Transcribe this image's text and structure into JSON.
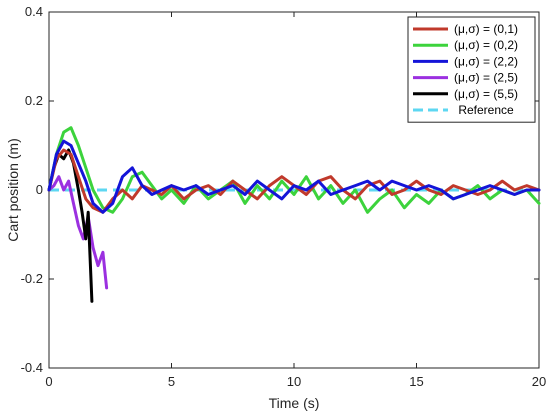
{
  "chart_data": {
    "type": "line",
    "title": "",
    "xlabel": "Time (s)",
    "ylabel": "Cart position (m)",
    "xlim": [
      0,
      20
    ],
    "ylim": [
      -0.4,
      0.4
    ],
    "x_ticks": [
      0,
      5,
      10,
      15,
      20
    ],
    "y_ticks": [
      -0.4,
      -0.2,
      0,
      0.2,
      0.4
    ],
    "grid": false,
    "legend_position": "top-right",
    "series": [
      {
        "name": "(μ,σ) = (0,1)",
        "color": "#c0392b",
        "x": [
          0,
          0.3,
          0.6,
          0.9,
          1.2,
          1.5,
          1.8,
          2.2,
          2.6,
          3.0,
          3.4,
          3.8,
          4.2,
          4.6,
          5.0,
          5.5,
          6.0,
          6.5,
          7.0,
          7.5,
          8.0,
          8.5,
          9.0,
          9.5,
          10.0,
          10.5,
          11.0,
          11.5,
          12.0,
          12.5,
          13.0,
          13.5,
          14.0,
          14.5,
          15.0,
          15.5,
          16.0,
          16.5,
          17.0,
          17.5,
          18.0,
          18.5,
          19.0,
          19.5,
          20.0
        ],
        "y": [
          0,
          0.07,
          0.09,
          0.08,
          0.03,
          -0.02,
          -0.04,
          -0.05,
          -0.02,
          0.0,
          -0.02,
          0.01,
          0.0,
          -0.01,
          0.01,
          -0.02,
          0.0,
          0.01,
          -0.01,
          0.02,
          0.0,
          -0.02,
          0.01,
          0.03,
          0.01,
          -0.01,
          0.02,
          0.03,
          0.0,
          -0.02,
          0.01,
          0.02,
          -0.01,
          0.0,
          0.02,
          0.0,
          -0.01,
          0.01,
          0.0,
          -0.01,
          0.0,
          0.02,
          0.0,
          0.01,
          0.0
        ]
      },
      {
        "name": "(μ,σ) = (0,2)",
        "color": "#3cd33c",
        "x": [
          0,
          0.3,
          0.6,
          0.9,
          1.2,
          1.5,
          1.8,
          2.2,
          2.6,
          3.0,
          3.4,
          3.8,
          4.2,
          4.6,
          5.0,
          5.5,
          6.0,
          6.5,
          7.0,
          7.5,
          8.0,
          8.5,
          9.0,
          9.5,
          10.0,
          10.5,
          11.0,
          11.5,
          12.0,
          12.5,
          13.0,
          13.5,
          14.0,
          14.5,
          15.0,
          15.5,
          16.0,
          16.5,
          17.0,
          17.5,
          18.0,
          18.5,
          19.0,
          19.5,
          20.0
        ],
        "y": [
          0,
          0.08,
          0.13,
          0.14,
          0.1,
          0.05,
          0.0,
          -0.04,
          -0.05,
          -0.02,
          0.03,
          0.04,
          0.01,
          -0.02,
          0.0,
          -0.03,
          0.01,
          -0.02,
          0.0,
          0.02,
          -0.03,
          0.01,
          -0.02,
          0.02,
          -0.01,
          0.03,
          -0.02,
          0.01,
          -0.03,
          0.0,
          -0.05,
          -0.02,
          0.0,
          -0.04,
          -0.01,
          -0.03,
          0.0,
          -0.02,
          -0.01,
          0.01,
          -0.02,
          0.0,
          -0.01,
          0.0,
          -0.03
        ]
      },
      {
        "name": "(μ,σ) = (2,2)",
        "color": "#1414d8",
        "x": [
          0,
          0.3,
          0.6,
          0.9,
          1.2,
          1.5,
          1.8,
          2.2,
          2.6,
          3.0,
          3.4,
          3.8,
          4.2,
          4.6,
          5.0,
          5.5,
          6.0,
          6.5,
          7.0,
          7.5,
          8.0,
          8.5,
          9.0,
          9.5,
          10.0,
          10.5,
          11.0,
          11.5,
          12.0,
          12.5,
          13.0,
          13.5,
          14.0,
          14.5,
          15.0,
          15.5,
          16.0,
          16.5,
          17.0,
          17.5,
          18.0,
          18.5,
          19.0,
          19.5,
          20.0
        ],
        "y": [
          0,
          0.08,
          0.11,
          0.1,
          0.06,
          0.02,
          -0.03,
          -0.05,
          -0.03,
          0.03,
          0.05,
          0.01,
          -0.01,
          0.0,
          0.01,
          0.0,
          0.01,
          -0.01,
          0.0,
          0.01,
          -0.01,
          0.02,
          0.0,
          -0.02,
          0.01,
          0.0,
          0.02,
          -0.01,
          0.0,
          0.01,
          0.02,
          0.0,
          0.02,
          0.01,
          0.0,
          0.01,
          0.0,
          -0.02,
          -0.01,
          0.0,
          0.01,
          0.0,
          -0.01,
          0.0,
          0.0
        ]
      },
      {
        "name": "(μ,σ) = (2,5)",
        "color": "#9b30e0",
        "x": [
          0,
          0.2,
          0.4,
          0.6,
          0.8,
          1.0,
          1.2,
          1.4,
          1.6,
          1.8,
          2.0,
          2.2,
          2.35
        ],
        "y": [
          0,
          0.01,
          0.03,
          0.0,
          0.02,
          -0.03,
          -0.08,
          -0.11,
          -0.06,
          -0.13,
          -0.17,
          -0.14,
          -0.22
        ]
      },
      {
        "name": "(μ,σ) = (5,5)",
        "color": "#000000",
        "x": [
          0,
          0.2,
          0.4,
          0.6,
          0.8,
          1.0,
          1.2,
          1.35,
          1.5,
          1.6,
          1.75
        ],
        "y": [
          0,
          0.05,
          0.08,
          0.07,
          0.09,
          0.06,
          0.0,
          -0.05,
          -0.11,
          -0.05,
          -0.25
        ]
      },
      {
        "name": "Reference",
        "color": "#5dd7f2",
        "dashed": true,
        "x": [
          0,
          20
        ],
        "y": [
          0,
          0
        ]
      }
    ]
  }
}
